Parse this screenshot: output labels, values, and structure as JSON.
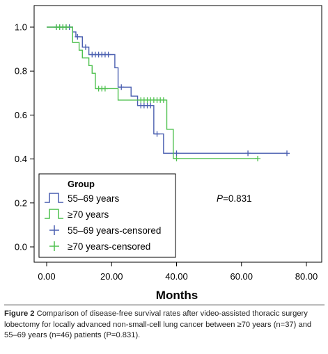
{
  "chart_data": {
    "type": "line",
    "subtype": "kaplan-meier step",
    "xlabel": "Months",
    "ylabel": "",
    "xlim": [
      0,
      80
    ],
    "ylim": [
      0,
      1
    ],
    "x_ticks": [
      0,
      20,
      40,
      60,
      80
    ],
    "x_tick_labels": [
      "0.00",
      "20.00",
      "40.00",
      "60.00",
      "80.00"
    ],
    "y_ticks": [
      0,
      0.2,
      0.4,
      0.6,
      0.8,
      1.0
    ],
    "y_tick_labels": [
      "0.0",
      "0.2",
      "0.4",
      "0.6",
      "0.8",
      "1.0"
    ],
    "grid": false,
    "legend": {
      "title": "Group",
      "placement": "bottom-left inside plot",
      "entries": [
        "55–69 years",
        "≥70 years",
        "55–69 years-censored",
        "≥70 years-censored"
      ]
    },
    "annotation": {
      "italic": "P",
      "text": "=0.831"
    },
    "series": [
      {
        "name": "55–69 years",
        "color": "#4a5fb0",
        "steps": [
          [
            0,
            1.0
          ],
          [
            8,
            0.978
          ],
          [
            9,
            0.956
          ],
          [
            11,
            0.909
          ],
          [
            13,
            0.875
          ],
          [
            21,
            0.815
          ],
          [
            22,
            0.727
          ],
          [
            26,
            0.686
          ],
          [
            28,
            0.643
          ],
          [
            33,
            0.514
          ],
          [
            36,
            0.426
          ],
          [
            74,
            0.426
          ]
        ],
        "censored": [
          [
            3,
            1.0
          ],
          [
            4,
            1.0
          ],
          [
            5,
            1.0
          ],
          [
            6,
            1.0
          ],
          [
            7,
            1.0
          ],
          [
            9.5,
            0.956
          ],
          [
            12,
            0.909
          ],
          [
            14,
            0.875
          ],
          [
            15,
            0.875
          ],
          [
            16,
            0.875
          ],
          [
            17,
            0.875
          ],
          [
            18,
            0.875
          ],
          [
            19,
            0.875
          ],
          [
            23,
            0.727
          ],
          [
            29,
            0.643
          ],
          [
            30,
            0.643
          ],
          [
            31,
            0.643
          ],
          [
            32,
            0.643
          ],
          [
            34,
            0.514
          ],
          [
            40,
            0.426
          ],
          [
            62,
            0.426
          ],
          [
            74,
            0.426
          ]
        ]
      },
      {
        "name": "≥70 years",
        "color": "#4fc14f",
        "steps": [
          [
            0,
            1.0
          ],
          [
            8,
            0.93
          ],
          [
            10,
            0.895
          ],
          [
            11,
            0.86
          ],
          [
            13,
            0.825
          ],
          [
            14,
            0.79
          ],
          [
            15,
            0.72
          ],
          [
            22,
            0.668
          ],
          [
            37,
            0.535
          ],
          [
            39,
            0.402
          ],
          [
            65,
            0.402
          ]
        ],
        "censored": [
          [
            3,
            1.0
          ],
          [
            4,
            1.0
          ],
          [
            5,
            1.0
          ],
          [
            6,
            1.0
          ],
          [
            16,
            0.72
          ],
          [
            17,
            0.72
          ],
          [
            18,
            0.72
          ],
          [
            29,
            0.668
          ],
          [
            30,
            0.668
          ],
          [
            31,
            0.668
          ],
          [
            32,
            0.668
          ],
          [
            33,
            0.668
          ],
          [
            34,
            0.668
          ],
          [
            35,
            0.668
          ],
          [
            36,
            0.668
          ],
          [
            40,
            0.402
          ],
          [
            65,
            0.402
          ]
        ]
      }
    ]
  },
  "caption": {
    "label": "Figure 2",
    "text": "Comparison of disease-free survival rates after video-assisted thoracic surgery lobectomy for locally advanced non-small-cell lung cancer between ≥70 years (n=37) and 55–69 years (n=46) patients (P=0.831)."
  }
}
